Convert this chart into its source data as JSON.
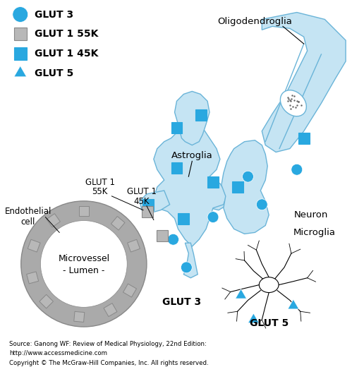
{
  "bg_color": "#ffffff",
  "cell_blue": "#c5e4f3",
  "cell_blue_edge": "#6ab4d8",
  "marker_blue": "#29a8e0",
  "marker_gray": "#b8b8b8",
  "marker_gray_edge": "#888888",
  "gray_ring": "#aaaaaa",
  "source_text1": "Source: Ganong WF: Review of Medical Physiology, 22nd Edition:",
  "source_text2": "http://www.accessmedicine.com",
  "copyright_text": "Copyright © The McGraw-Hill Companies, Inc. All rights reserved."
}
